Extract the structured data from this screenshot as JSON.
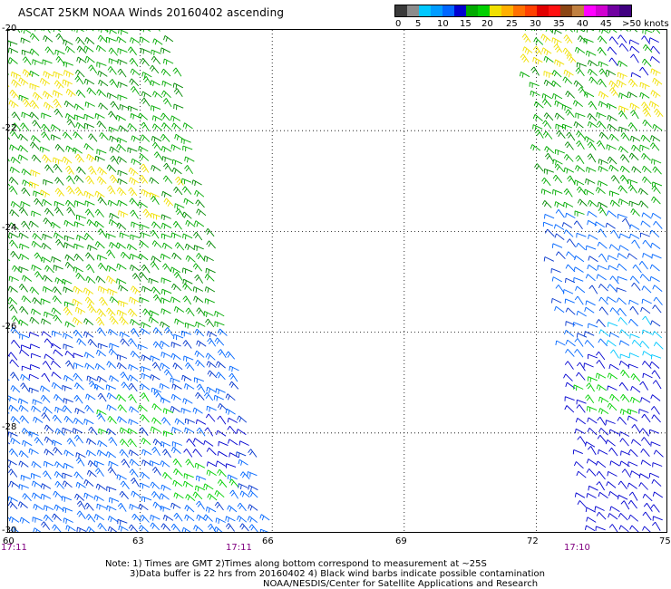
{
  "title": "ASCAT 25KM NOAA Winds 20160402 ascending",
  "colorbar": {
    "colors": [
      "#3a3a3a",
      "#8c8c8c",
      "#00c8ff",
      "#009cff",
      "#0066ff",
      "#0000d0",
      "#00aa00",
      "#00d000",
      "#f0e000",
      "#ffb000",
      "#ff7000",
      "#ff4000",
      "#e00000",
      "#ff1010",
      "#8b4513",
      "#c08040",
      "#ff00ff",
      "#d000d0",
      "#7000a0",
      "#400080"
    ],
    "labels": [
      "0",
      "5",
      "10",
      "15",
      "20",
      "25",
      "30",
      "35",
      "40",
      "45",
      ">50 knots"
    ]
  },
  "axes": {
    "lat_labels": [
      "-20",
      "-22",
      "-24",
      "-26",
      "-28",
      "-30"
    ],
    "lon_labels": [
      "60",
      "63",
      "66",
      "69",
      "72",
      "75"
    ],
    "lat_range": [
      -30,
      -20
    ],
    "lon_range": [
      60,
      75
    ],
    "grid": "dotted"
  },
  "time_labels": [
    "17:11",
    "17:11",
    "17:10"
  ],
  "wind_swaths": [
    {
      "name": "west-swath",
      "corners_lonlat": [
        [
          60,
          -20
        ],
        [
          63.8,
          -20
        ],
        [
          66,
          -30
        ],
        [
          60,
          -30
        ]
      ],
      "zones": [
        {
          "lat": [
            -20,
            -26
          ],
          "speed_knots": 17,
          "color": "#00aa00"
        },
        {
          "lat": [
            -26,
            -30
          ],
          "speed_knots": 12,
          "color": "#0066ff"
        }
      ],
      "highlights": [
        {
          "lon": 60.8,
          "lat": -21.2,
          "speed_knots": 21,
          "color": "#f0e000"
        },
        {
          "lon": 61.5,
          "lat": -23.0,
          "speed_knots": 21,
          "color": "#f0e000"
        },
        {
          "lon": 63.2,
          "lat": -23.3,
          "speed_knots": 21,
          "color": "#f0e000"
        },
        {
          "lon": 62.3,
          "lat": -25.5,
          "speed_knots": 20,
          "color": "#f0e000"
        },
        {
          "lon": 64.5,
          "lat": -29.0,
          "speed_knots": 17,
          "color": "#00d000"
        },
        {
          "lon": 63.0,
          "lat": -27.8,
          "speed_knots": 16,
          "color": "#00d000"
        },
        {
          "lon": 64.9,
          "lat": -28.2,
          "speed_knots": 8,
          "color": "#0000d0"
        },
        {
          "lon": 60.8,
          "lat": -26.5,
          "speed_knots": 8,
          "color": "#0000d0"
        }
      ]
    },
    {
      "name": "east-swath",
      "corners_lonlat": [
        [
          71.7,
          -20
        ],
        [
          75,
          -20
        ],
        [
          75,
          -30
        ],
        [
          73.2,
          -30
        ]
      ],
      "zones": [
        {
          "lat": [
            -20,
            -23.7
          ],
          "speed_knots": 17,
          "color": "#00aa00"
        },
        {
          "lat": [
            -23.7,
            -26.5
          ],
          "speed_knots": 10,
          "color": "#0066ff"
        },
        {
          "lat": [
            -26.5,
            -30
          ],
          "speed_knots": 8,
          "color": "#0000d0"
        }
      ],
      "highlights": [
        {
          "lon": 72.2,
          "lat": -20.6,
          "speed_knots": 21,
          "color": "#f0e000"
        },
        {
          "lon": 74.5,
          "lat": -21.3,
          "speed_knots": 21,
          "color": "#f0e000"
        },
        {
          "lon": 74.4,
          "lat": -26.2,
          "speed_knots": 6,
          "color": "#00c8ff"
        },
        {
          "lon": 73.8,
          "lat": -27.3,
          "speed_knots": 17,
          "color": "#00d000"
        },
        {
          "lon": 74.6,
          "lat": -20.5,
          "speed_knots": 8,
          "color": "#0000d0"
        }
      ]
    }
  ],
  "notes": {
    "line1": "Note: 1) Times are GMT 2)Times along bottom correspond to measurement at ~25S",
    "line2": "3)Data buffer is 22 hrs from 20160402 4) Black wind barbs indicate possible contamination",
    "line3": "NOAA/NESDIS/Center for Satellite Applications and Research"
  }
}
